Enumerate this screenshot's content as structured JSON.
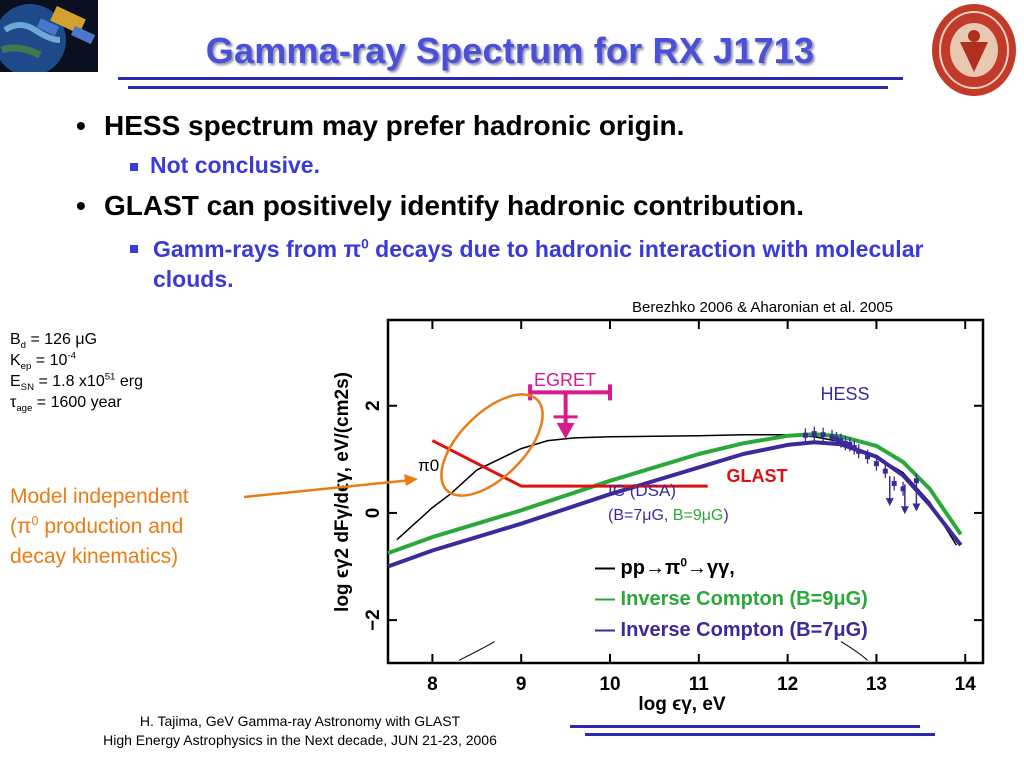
{
  "slide": {
    "title": "Gamma-ray Spectrum for RX J1713",
    "bullets": [
      {
        "text": "HESS spectrum may prefer hadronic origin.",
        "sub": "Not conclusive."
      },
      {
        "text": "GLAST can positively identify hadronic contribution.",
        "sub_parts": [
          "Gamm-rays from π",
          "0",
          " decays due to hadronic interaction with molecular clouds."
        ]
      }
    ],
    "citation": "Berezhko 2006 & Aharonian et al. 2005",
    "params": {
      "bd": {
        "sym": "B",
        "sub": "d",
        "rest": " = 126 μG"
      },
      "kep": {
        "sym": "K",
        "sub": "ep",
        "rest": " = 10",
        "sup": "-4"
      },
      "esn": {
        "sym": "E",
        "sub": "SN",
        "rest": " = 1.8 x10",
        "sup": "51",
        "tail": " erg"
      },
      "tage": {
        "sym": "τ",
        "sub": "age",
        "rest": " = 1600 year"
      }
    },
    "model_note": {
      "line1": "Model independent",
      "line2a": "(π",
      "line2sup": "0",
      "line2b": " production and",
      "line3": "decay kinematics)"
    },
    "footer": {
      "line1": "H. Tajima, GeV Gamma-ray Astronomy with GLAST",
      "line2": "High Energy Astrophysics in the Next decade, JUN 21-23, 2006"
    },
    "legend": {
      "pp": {
        "a": "— pp→π",
        "sup": "0",
        "b": "→γγ,"
      },
      "ic9": "— Inverse Compton (B=9μG)",
      "ic7": "— Inverse Compton (B=7μG)"
    },
    "colors": {
      "title": "#4a50d8",
      "accent": "#3a3ad8",
      "orange": "#ea7c14",
      "magenta": "#d81a8a",
      "green": "#2aa83a",
      "purple": "#3c2a9a",
      "red": "#e01010"
    }
  },
  "chart_data": {
    "type": "line",
    "xlabel": "log ϵγ, eV",
    "ylabel": "log ϵγ2 dFγ/dϵγ, eV/(cm2s)",
    "xlim": [
      7.5,
      14.2
    ],
    "ylim": [
      -2.8,
      3.6
    ],
    "xticks": [
      "8",
      "9",
      "10",
      "11",
      "12",
      "13",
      "14"
    ],
    "yticks": [
      "2",
      "0",
      "−2"
    ],
    "annotations": {
      "egret": "EGRET",
      "hess": "HESS",
      "glast": "GLAST",
      "pi0": "π0",
      "ic_dsa": "IC (DSA)",
      "bparts": [
        "(B=7μG, ",
        "B=9μG",
        ")"
      ]
    },
    "series": [
      {
        "name": "pp→π0→γγ",
        "color": "#000000",
        "x": [
          7.6,
          8.0,
          8.2,
          8.5,
          9.0,
          9.3,
          9.6,
          10,
          10.5,
          11,
          11.5,
          12,
          12.3,
          12.6,
          13.0,
          13.3,
          13.6,
          13.9
        ],
        "y": [
          -0.5,
          0.1,
          0.35,
          0.8,
          1.2,
          1.35,
          1.4,
          1.42,
          1.43,
          1.44,
          1.46,
          1.46,
          1.42,
          1.33,
          1.05,
          0.75,
          0.2,
          -0.6
        ]
      },
      {
        "name": "Inverse Compton (B=9μG)",
        "color": "#2aa83a",
        "x": [
          7.5,
          8,
          9,
          10,
          11,
          11.5,
          12,
          12.3,
          12.6,
          13.0,
          13.3,
          13.6,
          13.95
        ],
        "y": [
          -0.75,
          -0.45,
          0.05,
          0.6,
          1.1,
          1.3,
          1.44,
          1.47,
          1.43,
          1.25,
          0.95,
          0.45,
          -0.4
        ]
      },
      {
        "name": "Inverse Compton (B=7μG)",
        "color": "#3c2a9a",
        "x": [
          7.5,
          8,
          9,
          10,
          11,
          11.5,
          12,
          12.3,
          12.6,
          13.0,
          13.3,
          13.6,
          13.95
        ],
        "y": [
          -1.0,
          -0.7,
          -0.2,
          0.35,
          0.85,
          1.1,
          1.27,
          1.32,
          1.28,
          1.05,
          0.7,
          0.15,
          -0.6
        ]
      },
      {
        "name": "GLAST",
        "color": "#e01010",
        "x": [
          8.0,
          9.0,
          11.1
        ],
        "y": [
          1.35,
          0.5,
          0.5
        ]
      }
    ],
    "egret_points": {
      "x": [
        9.1,
        10.0
      ],
      "y": [
        2.25,
        2.25
      ],
      "center_x": 9.5,
      "center_y": 1.42
    },
    "hess_points": {
      "x": [
        12.2,
        12.3,
        12.4,
        12.5,
        12.55,
        12.6,
        12.65,
        12.7,
        12.75,
        12.8,
        12.9,
        13.0,
        13.1,
        13.2,
        13.3,
        13.45
      ],
      "y": [
        1.45,
        1.48,
        1.46,
        1.42,
        1.38,
        1.35,
        1.3,
        1.28,
        1.22,
        1.15,
        1.05,
        0.92,
        0.78,
        0.55,
        0.45,
        0.6
      ]
    }
  }
}
